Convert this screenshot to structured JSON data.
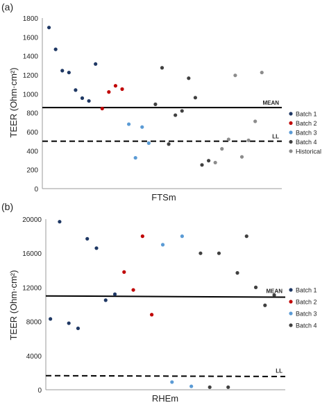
{
  "chart_data": [
    {
      "type": "scatter",
      "panel_label": "(a)",
      "title": "",
      "xlabel": "FTSm",
      "ylabel": "TEER (Ohm·cm²)",
      "ylim": [
        0,
        1800
      ],
      "yticks": [
        0,
        200,
        400,
        600,
        800,
        1000,
        1200,
        1400,
        1600,
        1800
      ],
      "xlim": [
        0,
        36
      ],
      "grid": false,
      "legend_position": "right",
      "reference_lines": [
        {
          "label": "MEAN",
          "y": 855,
          "style": "solid"
        },
        {
          "label": "LL",
          "y": 500,
          "style": "dashed"
        }
      ],
      "series": [
        {
          "name": "Batch 1",
          "color": "#1f3864",
          "points": [
            [
              1,
              1700
            ],
            [
              2,
              1470
            ],
            [
              3,
              1245
            ],
            [
              4,
              1225
            ],
            [
              5,
              1040
            ],
            [
              6,
              955
            ],
            [
              7,
              925
            ],
            [
              8,
              1315
            ]
          ]
        },
        {
          "name": "Batch 2",
          "color": "#c00000",
          "points": [
            [
              9,
              845
            ],
            [
              10,
              1020
            ],
            [
              11,
              1085
            ],
            [
              12,
              1050
            ]
          ]
        },
        {
          "name": "Batch 3",
          "color": "#5b9bd5",
          "points": [
            [
              13,
              680
            ],
            [
              14,
              325
            ],
            [
              15,
              650
            ],
            [
              16,
              480
            ]
          ]
        },
        {
          "name": "Batch 4",
          "color": "#404040",
          "points": [
            [
              17,
              890
            ],
            [
              18,
              1275
            ],
            [
              19,
              470
            ],
            [
              20,
              775
            ],
            [
              21,
              820
            ],
            [
              22,
              1165
            ],
            [
              23,
              960
            ],
            [
              24,
              250
            ],
            [
              25,
              295
            ]
          ]
        },
        {
          "name": "Historical",
          "color": "#8c8c8c",
          "points": [
            [
              26,
              275
            ],
            [
              27,
              420
            ],
            [
              28,
              520
            ],
            [
              29,
              1195
            ],
            [
              30,
              335
            ],
            [
              31,
              510
            ],
            [
              32,
              710
            ],
            [
              33,
              1225
            ]
          ]
        }
      ]
    },
    {
      "type": "scatter",
      "panel_label": "(b)",
      "title": "",
      "xlabel": "RHEm",
      "ylabel": "TEER (Ohm·cm²)",
      "ylim": [
        0,
        20000
      ],
      "yticks": [
        0,
        4000,
        8000,
        12000,
        16000,
        20000
      ],
      "xlim": [
        0,
        26
      ],
      "grid": false,
      "legend_position": "right",
      "reference_lines": [
        {
          "label": "MEAN",
          "y": 11000,
          "y_end": 10850,
          "style": "solid"
        },
        {
          "label": "LL",
          "y": 1650,
          "y_end": 1550,
          "style": "dashed"
        }
      ],
      "series": [
        {
          "name": "Batch 1",
          "color": "#1f3864",
          "points": [
            [
              0.5,
              8300
            ],
            [
              1.5,
              19700
            ],
            [
              2.5,
              7800
            ],
            [
              3.5,
              7200
            ],
            [
              4.5,
              17700
            ],
            [
              5.5,
              16600
            ],
            [
              6.5,
              10500
            ],
            [
              7.5,
              11200
            ]
          ]
        },
        {
          "name": "Batch 2",
          "color": "#c00000",
          "points": [
            [
              8.5,
              13800
            ],
            [
              9.5,
              11700
            ],
            [
              10.5,
              18000
            ],
            [
              11.5,
              8800
            ]
          ]
        },
        {
          "name": "Batch 3",
          "color": "#5b9bd5",
          "points": [
            [
              12.7,
              17000
            ],
            [
              13.7,
              900
            ],
            [
              14.8,
              18000
            ],
            [
              15.8,
              400
            ]
          ]
        },
        {
          "name": "Batch 4",
          "color": "#404040",
          "points": [
            [
              16.8,
              16000
            ],
            [
              17.8,
              300
            ],
            [
              18.8,
              16000
            ],
            [
              19.8,
              300
            ],
            [
              20.8,
              13700
            ],
            [
              21.8,
              18000
            ],
            [
              22.8,
              12000
            ],
            [
              23.8,
              9900
            ],
            [
              24.8,
              11100
            ]
          ]
        }
      ]
    }
  ]
}
